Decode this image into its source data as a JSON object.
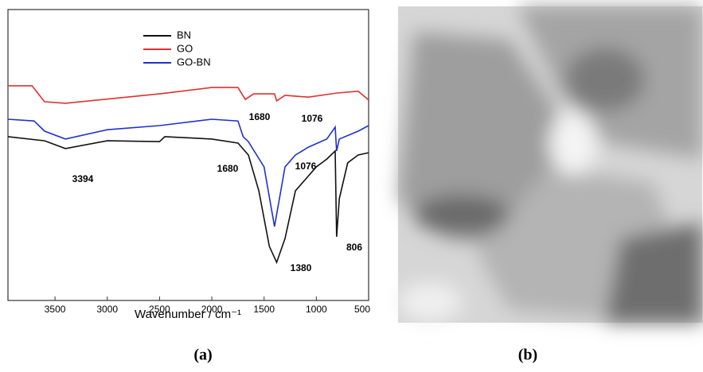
{
  "chart_data": {
    "type": "line",
    "xlabel": "Wavenumber / cm⁻¹",
    "xlim": [
      3950,
      500
    ],
    "ylim": [
      0,
      100
    ],
    "xticks": [
      3500,
      3000,
      2500,
      2000,
      1500,
      1000,
      500
    ],
    "legend": "top",
    "series": [
      {
        "name": "BN",
        "color": "#111111",
        "x": [
          3950,
          3600,
          3400,
          3000,
          2500,
          2450,
          2000,
          1750,
          1650,
          1550,
          1450,
          1380,
          1300,
          1200,
          1000,
          900,
          820,
          806,
          780,
          700,
          600,
          500
        ],
        "values": [
          56.3,
          54.9,
          52.2,
          54.9,
          54.6,
          56.3,
          55.5,
          54.1,
          50.0,
          37.7,
          18.6,
          13.1,
          21.3,
          37.7,
          45.9,
          48.6,
          51.4,
          21.9,
          35.0,
          47.3,
          50.0,
          50.8
        ]
      },
      {
        "name": "GO",
        "color": "#e03030",
        "x": [
          3950,
          3720,
          3600,
          3400,
          2500,
          2000,
          1750,
          1680,
          1600,
          1400,
          1380,
          1300,
          1076,
          800,
          600,
          500
        ],
        "values": [
          73.8,
          73.8,
          68.3,
          67.8,
          71.0,
          73.2,
          73.2,
          69.1,
          71.0,
          71.0,
          68.6,
          70.5,
          69.9,
          71.3,
          71.9,
          68.9
        ]
      },
      {
        "name": "GO-BN",
        "color": "#2030d0",
        "x": [
          3950,
          3700,
          3600,
          3400,
          3000,
          2500,
          2000,
          1750,
          1700,
          1650,
          1500,
          1400,
          1300,
          1200,
          1076,
          900,
          820,
          806,
          780,
          600,
          500
        ],
        "values": [
          62.3,
          61.7,
          58.2,
          55.5,
          58.7,
          60.1,
          62.3,
          61.7,
          56.3,
          54.6,
          45.9,
          25.4,
          45.9,
          50.0,
          52.7,
          55.5,
          59.6,
          51.4,
          55.5,
          58.2,
          60.1
        ]
      }
    ],
    "annotations": [
      "1680",
      "1076",
      "1680",
      "1076",
      "3394",
      "1380",
      "806"
    ]
  },
  "figure": {
    "labels": [
      "(a)",
      "(b)"
    ]
  }
}
